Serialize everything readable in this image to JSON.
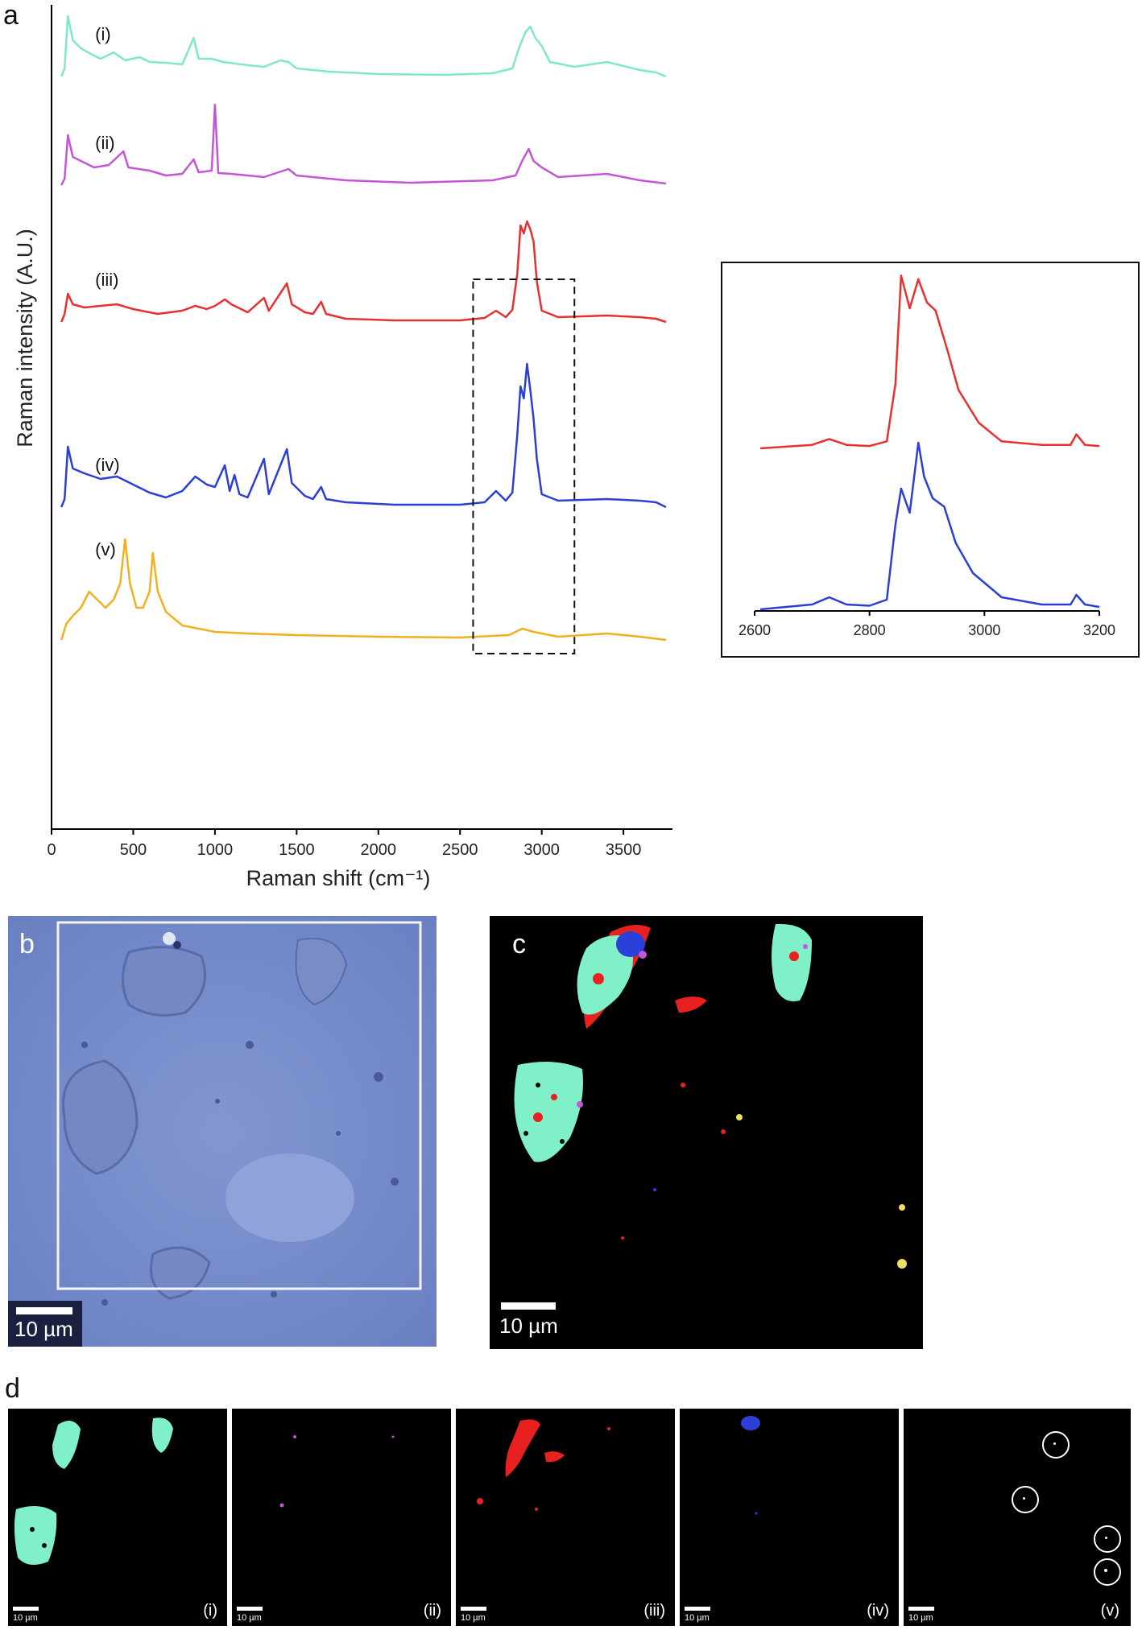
{
  "panels": {
    "a": "a",
    "b": "b",
    "c": "c",
    "d": "d"
  },
  "chart_data": [
    {
      "type": "line",
      "panel": "a",
      "xlabel": "Raman shift (cm⁻¹)",
      "ylabel": "Raman intensity (A.U.)",
      "xlim": [
        0,
        3800
      ],
      "xticks": [
        "0",
        "500",
        "1000",
        "1500",
        "2000",
        "2500",
        "3000",
        "3500"
      ],
      "highlight_box": [
        2580,
        3200
      ],
      "series": [
        {
          "name": "(i)",
          "color": "#7ee8c8",
          "offset": 95,
          "points": [
            [
              60,
              0
            ],
            [
              80,
              10
            ],
            [
              100,
              75
            ],
            [
              130,
              45
            ],
            [
              180,
              35
            ],
            [
              240,
              28
            ],
            [
              300,
              22
            ],
            [
              380,
              30
            ],
            [
              450,
              20
            ],
            [
              540,
              24
            ],
            [
              600,
              18
            ],
            [
              700,
              17
            ],
            [
              800,
              15
            ],
            [
              870,
              48
            ],
            [
              900,
              22
            ],
            [
              980,
              22
            ],
            [
              1050,
              18
            ],
            [
              1200,
              14
            ],
            [
              1300,
              12
            ],
            [
              1400,
              20
            ],
            [
              1450,
              18
            ],
            [
              1500,
              10
            ],
            [
              1700,
              6
            ],
            [
              2000,
              3
            ],
            [
              2400,
              2
            ],
            [
              2700,
              4
            ],
            [
              2820,
              10
            ],
            [
              2860,
              35
            ],
            [
              2900,
              55
            ],
            [
              2930,
              62
            ],
            [
              2960,
              48
            ],
            [
              3000,
              38
            ],
            [
              3050,
              18
            ],
            [
              3200,
              12
            ],
            [
              3400,
              18
            ],
            [
              3600,
              8
            ],
            [
              3700,
              5
            ],
            [
              3760,
              0
            ]
          ]
        },
        {
          "name": "(ii)",
          "color": "#c455d6",
          "offset": 230,
          "points": [
            [
              60,
              0
            ],
            [
              80,
              8
            ],
            [
              100,
              62
            ],
            [
              130,
              35
            ],
            [
              200,
              28
            ],
            [
              260,
              22
            ],
            [
              350,
              25
            ],
            [
              440,
              42
            ],
            [
              470,
              22
            ],
            [
              600,
              18
            ],
            [
              700,
              12
            ],
            [
              800,
              14
            ],
            [
              870,
              32
            ],
            [
              900,
              16
            ],
            [
              980,
              18
            ],
            [
              1000,
              100
            ],
            [
              1020,
              15
            ],
            [
              1100,
              14
            ],
            [
              1300,
              10
            ],
            [
              1450,
              20
            ],
            [
              1500,
              12
            ],
            [
              1800,
              6
            ],
            [
              2200,
              3
            ],
            [
              2700,
              6
            ],
            [
              2840,
              12
            ],
            [
              2880,
              30
            ],
            [
              2920,
              45
            ],
            [
              2950,
              30
            ],
            [
              3000,
              22
            ],
            [
              3100,
              10
            ],
            [
              3400,
              14
            ],
            [
              3600,
              6
            ],
            [
              3760,
              2
            ]
          ]
        },
        {
          "name": "(iii)",
          "color": "#e83030",
          "offset": 400,
          "points": [
            [
              60,
              0
            ],
            [
              80,
              10
            ],
            [
              100,
              35
            ],
            [
              130,
              22
            ],
            [
              200,
              18
            ],
            [
              300,
              20
            ],
            [
              400,
              22
            ],
            [
              500,
              16
            ],
            [
              650,
              10
            ],
            [
              800,
              14
            ],
            [
              880,
              20
            ],
            [
              950,
              16
            ],
            [
              1000,
              20
            ],
            [
              1060,
              28
            ],
            [
              1100,
              22
            ],
            [
              1200,
              12
            ],
            [
              1300,
              30
            ],
            [
              1330,
              14
            ],
            [
              1440,
              48
            ],
            [
              1470,
              22
            ],
            [
              1550,
              12
            ],
            [
              1600,
              10
            ],
            [
              1650,
              25
            ],
            [
              1680,
              10
            ],
            [
              1800,
              4
            ],
            [
              2100,
              2
            ],
            [
              2500,
              2
            ],
            [
              2650,
              5
            ],
            [
              2720,
              14
            ],
            [
              2780,
              6
            ],
            [
              2820,
              15
            ],
            [
              2850,
              60
            ],
            [
              2870,
              120
            ],
            [
              2890,
              110
            ],
            [
              2910,
              125
            ],
            [
              2930,
              115
            ],
            [
              2950,
              100
            ],
            [
              2970,
              50
            ],
            [
              3000,
              14
            ],
            [
              3100,
              6
            ],
            [
              3400,
              8
            ],
            [
              3600,
              6
            ],
            [
              3700,
              4
            ],
            [
              3760,
              0
            ]
          ]
        },
        {
          "name": "(iv)",
          "color": "#2b3fd6",
          "offset": 630,
          "points": [
            [
              60,
              0
            ],
            [
              80,
              10
            ],
            [
              100,
              75
            ],
            [
              130,
              48
            ],
            [
              200,
              42
            ],
            [
              300,
              35
            ],
            [
              400,
              38
            ],
            [
              500,
              28
            ],
            [
              600,
              18
            ],
            [
              700,
              12
            ],
            [
              800,
              20
            ],
            [
              880,
              38
            ],
            [
              950,
              28
            ],
            [
              1000,
              25
            ],
            [
              1060,
              52
            ],
            [
              1090,
              20
            ],
            [
              1120,
              40
            ],
            [
              1150,
              16
            ],
            [
              1200,
              12
            ],
            [
              1300,
              60
            ],
            [
              1330,
              16
            ],
            [
              1440,
              72
            ],
            [
              1470,
              30
            ],
            [
              1550,
              14
            ],
            [
              1600,
              10
            ],
            [
              1650,
              25
            ],
            [
              1680,
              10
            ],
            [
              1800,
              6
            ],
            [
              2100,
              3
            ],
            [
              2500,
              3
            ],
            [
              2650,
              6
            ],
            [
              2720,
              20
            ],
            [
              2780,
              8
            ],
            [
              2820,
              18
            ],
            [
              2850,
              90
            ],
            [
              2870,
              150
            ],
            [
              2890,
              135
            ],
            [
              2910,
              178
            ],
            [
              2930,
              145
            ],
            [
              2950,
              110
            ],
            [
              2970,
              60
            ],
            [
              3000,
              16
            ],
            [
              3100,
              8
            ],
            [
              3400,
              10
            ],
            [
              3600,
              8
            ],
            [
              3700,
              6
            ],
            [
              3760,
              0
            ]
          ]
        },
        {
          "name": "(v)",
          "color": "#f0b020",
          "offset": 795,
          "points": [
            [
              60,
              0
            ],
            [
              90,
              20
            ],
            [
              130,
              30
            ],
            [
              180,
              40
            ],
            [
              230,
              60
            ],
            [
              280,
              50
            ],
            [
              330,
              40
            ],
            [
              380,
              50
            ],
            [
              420,
              70
            ],
            [
              450,
              125
            ],
            [
              480,
              70
            ],
            [
              520,
              40
            ],
            [
              560,
              40
            ],
            [
              600,
              60
            ],
            [
              620,
              108
            ],
            [
              650,
              60
            ],
            [
              700,
              35
            ],
            [
              800,
              18
            ],
            [
              900,
              14
            ],
            [
              1000,
              10
            ],
            [
              1200,
              8
            ],
            [
              1500,
              6
            ],
            [
              2000,
              4
            ],
            [
              2500,
              3
            ],
            [
              2800,
              6
            ],
            [
              2880,
              14
            ],
            [
              2950,
              10
            ],
            [
              3100,
              4
            ],
            [
              3400,
              8
            ],
            [
              3600,
              4
            ],
            [
              3760,
              0
            ]
          ]
        }
      ]
    },
    {
      "type": "line",
      "panel": "a-inset",
      "xlim": [
        2600,
        3200
      ],
      "xticks": [
        "2600",
        "2800",
        "3000",
        "3200"
      ],
      "series": [
        {
          "color": "#e83030",
          "points": [
            [
              2610,
              0
            ],
            [
              2700,
              3
            ],
            [
              2730,
              8
            ],
            [
              2760,
              3
            ],
            [
              2800,
              2
            ],
            [
              2830,
              6
            ],
            [
              2845,
              55
            ],
            [
              2855,
              148
            ],
            [
              2870,
              120
            ],
            [
              2885,
              145
            ],
            [
              2900,
              125
            ],
            [
              2915,
              118
            ],
            [
              2935,
              85
            ],
            [
              2955,
              50
            ],
            [
              2990,
              22
            ],
            [
              3030,
              6
            ],
            [
              3100,
              3
            ],
            [
              3150,
              3
            ],
            [
              3160,
              12
            ],
            [
              3175,
              3
            ],
            [
              3200,
              2
            ]
          ]
        },
        {
          "color": "#2b3fd6",
          "points": [
            [
              2610,
              0
            ],
            [
              2700,
              4
            ],
            [
              2730,
              10
            ],
            [
              2760,
              4
            ],
            [
              2800,
              3
            ],
            [
              2830,
              8
            ],
            [
              2845,
              70
            ],
            [
              2855,
              100
            ],
            [
              2870,
              80
            ],
            [
              2885,
              138
            ],
            [
              2895,
              110
            ],
            [
              2910,
              92
            ],
            [
              2930,
              85
            ],
            [
              2950,
              55
            ],
            [
              2980,
              30
            ],
            [
              3030,
              10
            ],
            [
              3100,
              4
            ],
            [
              3150,
              4
            ],
            [
              3160,
              12
            ],
            [
              3175,
              4
            ],
            [
              3200,
              2
            ]
          ]
        }
      ]
    }
  ],
  "panel_b": {
    "scale_label": "10 µm"
  },
  "panel_c": {
    "scale_label": "10 µm"
  },
  "panel_d": {
    "subpanels": [
      {
        "label": "(i)",
        "scale": "10 µm"
      },
      {
        "label": "(ii)",
        "scale": "10 µm"
      },
      {
        "label": "(iii)",
        "scale": "10 µm"
      },
      {
        "label": "(iv)",
        "scale": "10 µm"
      },
      {
        "label": "(v)",
        "scale": "10 µm"
      }
    ]
  },
  "colors": {
    "teal": "#7ee8c8",
    "purple": "#c455d6",
    "red": "#e83030",
    "blue": "#2b3fd6",
    "yellow": "#f0e060",
    "micrograph": "#6f86c8"
  }
}
